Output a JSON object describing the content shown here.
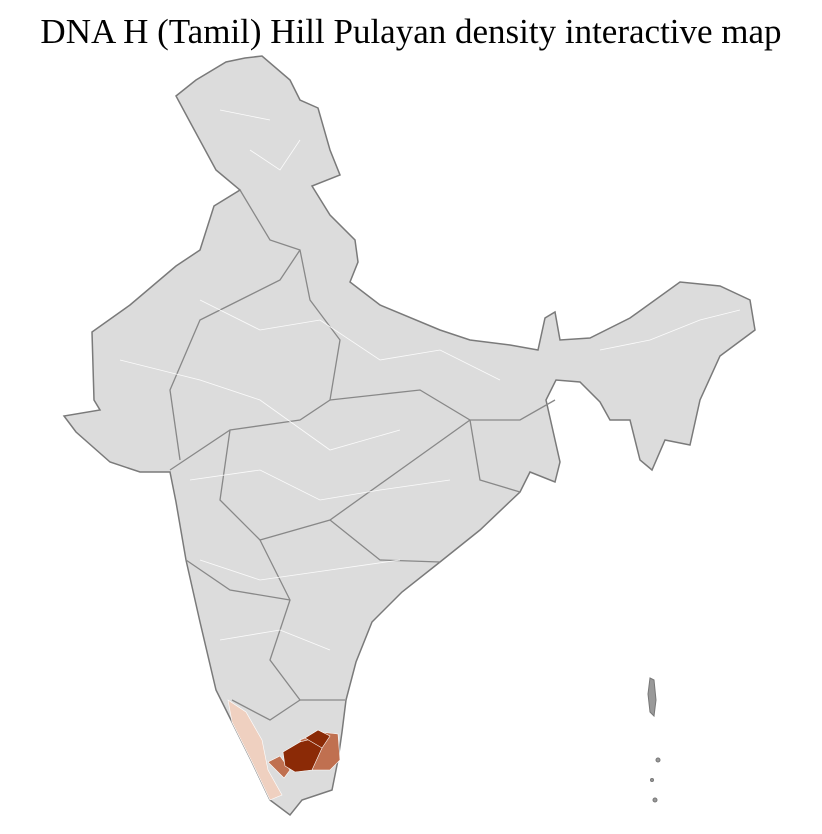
{
  "title": "DNA H (Tamil) Hill Pulayan density interactive map",
  "map": {
    "region": "India (districts)",
    "colors": {
      "base_fill": "#dcdcdc",
      "district_border": "#ffffff",
      "state_border": "#7a7a7a",
      "density_low": "#efd0c0",
      "density_mid": "#c07050",
      "density_high": "#8b2a06"
    },
    "highlighted_areas": [
      {
        "area": "Kerala districts",
        "density": "low"
      },
      {
        "area": "Tamil Nadu southern-central districts",
        "density": "high"
      },
      {
        "area": "Tamil Nadu surrounding districts",
        "density": "mid"
      }
    ]
  }
}
